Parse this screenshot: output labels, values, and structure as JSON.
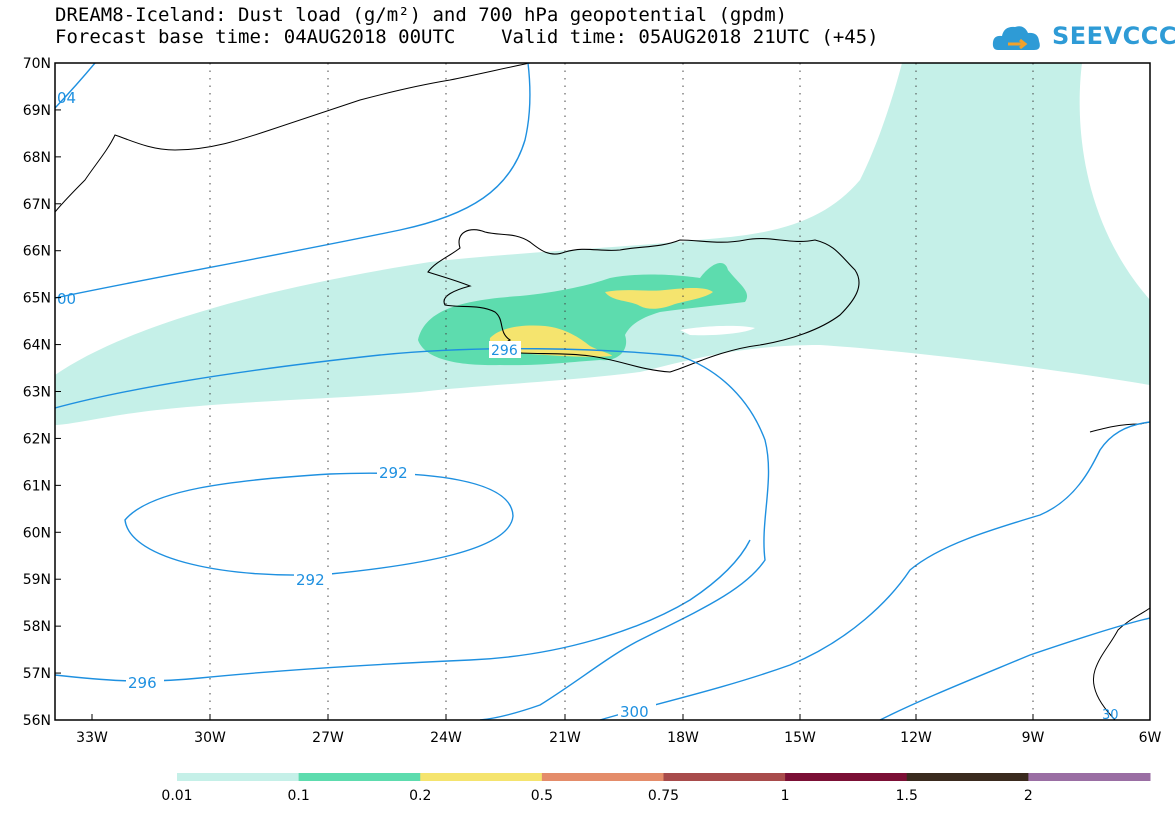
{
  "title_line1": "DREAM8-Iceland: Dust load (g/m²) and 700 hPa geopotential (gpdm)",
  "title_line2": "Forecast base time: 04AUG2018 00UTC    Valid time: 05AUG2018 21UTC (+45)",
  "logo_text": "SEEVCCC",
  "lat_labels": [
    "70N",
    "69N",
    "68N",
    "67N",
    "66N",
    "65N",
    "64N",
    "63N",
    "62N",
    "61N",
    "60N",
    "59N",
    "58N",
    "57N",
    "56N"
  ],
  "lon_labels": [
    "33W",
    "30W",
    "27W",
    "24W",
    "21W",
    "18W",
    "15W",
    "12W",
    "9W",
    "6W"
  ],
  "contour_labels": {
    "c292_top": "292",
    "c292_bottom": "292",
    "c296_left": "296",
    "c296_center": "296",
    "c300_bottom": "300",
    "c304_topleft": "04",
    "c300_left": "00",
    "c300_bottomright": "30"
  },
  "legend": {
    "ticks": [
      "0.01",
      "0.1",
      "0.2",
      "0.5",
      "0.75",
      "1",
      "1.5",
      "2"
    ],
    "colors": [
      "#c5f0e8",
      "#5ddcae",
      "#f5e46e",
      "#e48c6a",
      "#a84b4b",
      "#7b0f35",
      "#3a2a1e",
      "#9a6ea3"
    ]
  }
}
